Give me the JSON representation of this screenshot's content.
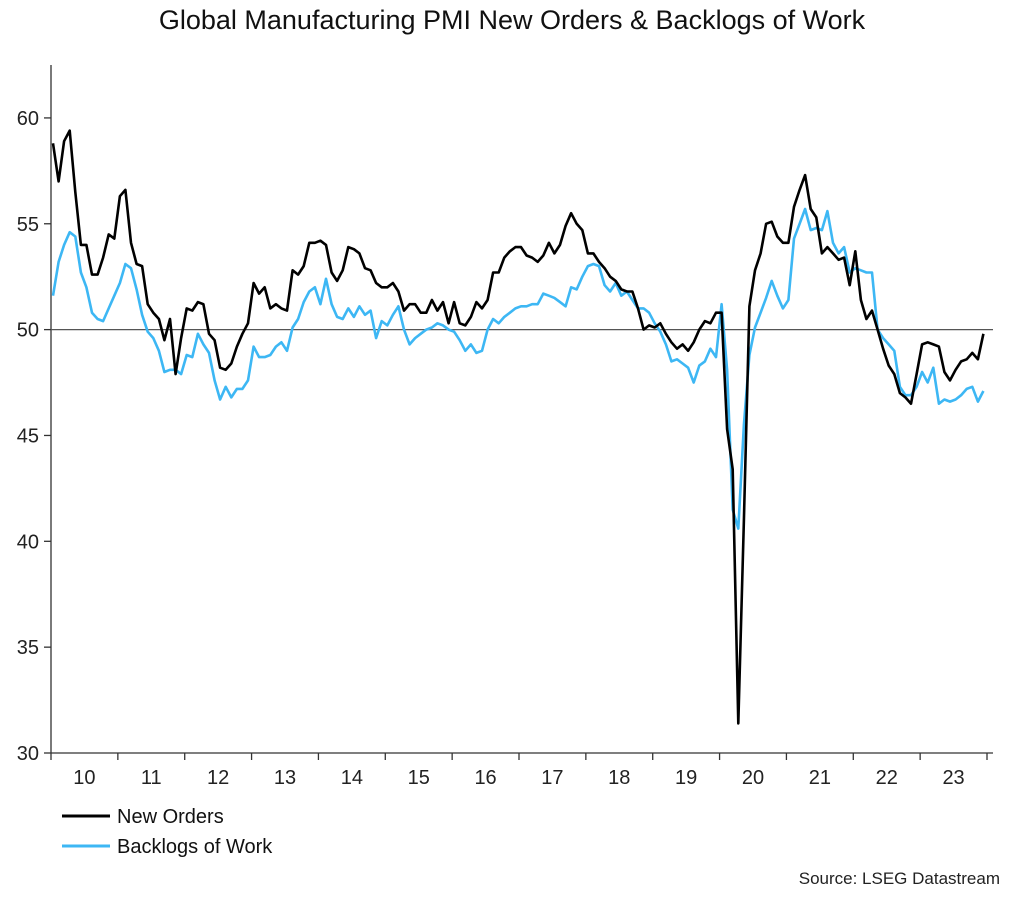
{
  "chart_data": {
    "type": "line",
    "title": "Global Manufacturing PMI New Orders & Backlogs of Work",
    "xlabel": "",
    "ylabel": "",
    "ylim": [
      30,
      62.5
    ],
    "yticks": [
      30,
      35,
      40,
      45,
      50,
      55,
      60
    ],
    "xlim": [
      "2010-01",
      "2023-12"
    ],
    "frequency": "monthly",
    "xtick_labels": [
      "10",
      "11",
      "12",
      "13",
      "14",
      "15",
      "16",
      "17",
      "18",
      "19",
      "20",
      "21",
      "22",
      "23"
    ],
    "reference_line": 50,
    "grid": false,
    "legend_placement": "bottom-left",
    "source": "Source: LSEG Datastream",
    "series": [
      {
        "name": "New Orders",
        "color": "#000000",
        "values": [
          58.8,
          57.0,
          58.9,
          59.4,
          56.5,
          54.0,
          54.0,
          52.6,
          52.6,
          53.4,
          54.5,
          54.3,
          56.3,
          56.6,
          54.1,
          53.1,
          53.0,
          51.2,
          50.8,
          50.5,
          49.5,
          50.5,
          47.9,
          49.6,
          51.0,
          50.9,
          51.3,
          51.2,
          49.8,
          49.5,
          48.2,
          48.1,
          48.4,
          49.2,
          49.8,
          50.3,
          52.2,
          51.7,
          52.0,
          51.0,
          51.2,
          51.0,
          50.9,
          52.8,
          52.6,
          53.0,
          54.1,
          54.1,
          54.2,
          54.0,
          52.7,
          52.3,
          52.8,
          53.9,
          53.8,
          53.6,
          52.9,
          52.8,
          52.2,
          52.0,
          52.0,
          52.2,
          51.8,
          50.9,
          51.2,
          51.2,
          50.8,
          50.8,
          51.4,
          50.9,
          51.3,
          50.3,
          51.3,
          50.3,
          50.2,
          50.6,
          51.3,
          51.0,
          51.4,
          52.7,
          52.7,
          53.4,
          53.7,
          53.9,
          53.9,
          53.5,
          53.4,
          53.2,
          53.5,
          54.1,
          53.6,
          54.0,
          54.9,
          55.5,
          55.0,
          54.7,
          53.6,
          53.6,
          53.2,
          52.9,
          52.5,
          52.3,
          51.9,
          51.8,
          51.8,
          51.0,
          50.0,
          50.2,
          50.1,
          50.3,
          49.8,
          49.4,
          49.1,
          49.3,
          49.0,
          49.4,
          50.0,
          50.4,
          50.3,
          50.8,
          50.8,
          45.3,
          43.4,
          31.4,
          41.0,
          51.1,
          52.8,
          53.6,
          55.0,
          55.1,
          54.4,
          54.1,
          54.1,
          55.8,
          56.6,
          57.3,
          55.7,
          55.3,
          53.6,
          53.9,
          53.6,
          53.3,
          53.4,
          52.1,
          53.7,
          51.4,
          50.5,
          50.9,
          50.0,
          49.1,
          48.3,
          47.9,
          47.0,
          46.8,
          46.5,
          47.9,
          49.3,
          49.4,
          49.3,
          49.2,
          48.0,
          47.6,
          48.1,
          48.5,
          48.6,
          48.9,
          48.6,
          49.8
        ]
      },
      {
        "name": "Backlogs of Work",
        "color": "#3db7f4",
        "values": [
          51.6,
          53.2,
          54.0,
          54.6,
          54.4,
          52.7,
          52.0,
          50.8,
          50.5,
          50.4,
          51.0,
          51.6,
          52.2,
          53.1,
          52.9,
          51.9,
          50.7,
          49.9,
          49.6,
          49.0,
          48.0,
          48.1,
          48.1,
          47.9,
          48.8,
          48.7,
          49.8,
          49.3,
          48.9,
          47.6,
          46.7,
          47.3,
          46.8,
          47.2,
          47.2,
          47.6,
          49.2,
          48.7,
          48.7,
          48.8,
          49.2,
          49.4,
          49.0,
          50.1,
          50.5,
          51.3,
          51.8,
          52.0,
          51.2,
          52.4,
          51.2,
          50.6,
          50.5,
          51.0,
          50.6,
          51.1,
          50.7,
          50.9,
          49.6,
          50.4,
          50.2,
          50.7,
          51.1,
          50.0,
          49.3,
          49.6,
          49.8,
          50.0,
          50.1,
          50.3,
          50.2,
          50.0,
          49.9,
          49.5,
          49.0,
          49.3,
          48.9,
          49.0,
          50.0,
          50.5,
          50.3,
          50.6,
          50.8,
          51.0,
          51.1,
          51.1,
          51.2,
          51.2,
          51.7,
          51.6,
          51.5,
          51.3,
          51.1,
          52.0,
          51.9,
          52.5,
          53.0,
          53.1,
          53.0,
          52.1,
          51.8,
          52.2,
          51.6,
          51.8,
          51.4,
          51.0,
          51.0,
          50.8,
          50.3,
          49.9,
          49.3,
          48.5,
          48.6,
          48.4,
          48.2,
          47.5,
          48.3,
          48.5,
          49.1,
          48.7,
          51.2,
          48.1,
          41.5,
          40.6,
          45.5,
          48.8,
          50.1,
          50.8,
          51.5,
          52.3,
          51.6,
          51.0,
          51.4,
          54.3,
          55.0,
          55.7,
          54.7,
          54.8,
          54.7,
          55.6,
          54.1,
          53.6,
          53.9,
          52.7,
          52.9,
          52.8,
          52.7,
          52.7,
          50.0,
          49.6,
          49.3,
          49.0,
          47.3,
          46.9,
          46.9,
          47.3,
          48.0,
          47.5,
          48.2,
          46.5,
          46.7,
          46.6,
          46.7,
          46.9,
          47.2,
          47.3,
          46.6,
          47.1
        ]
      }
    ]
  }
}
